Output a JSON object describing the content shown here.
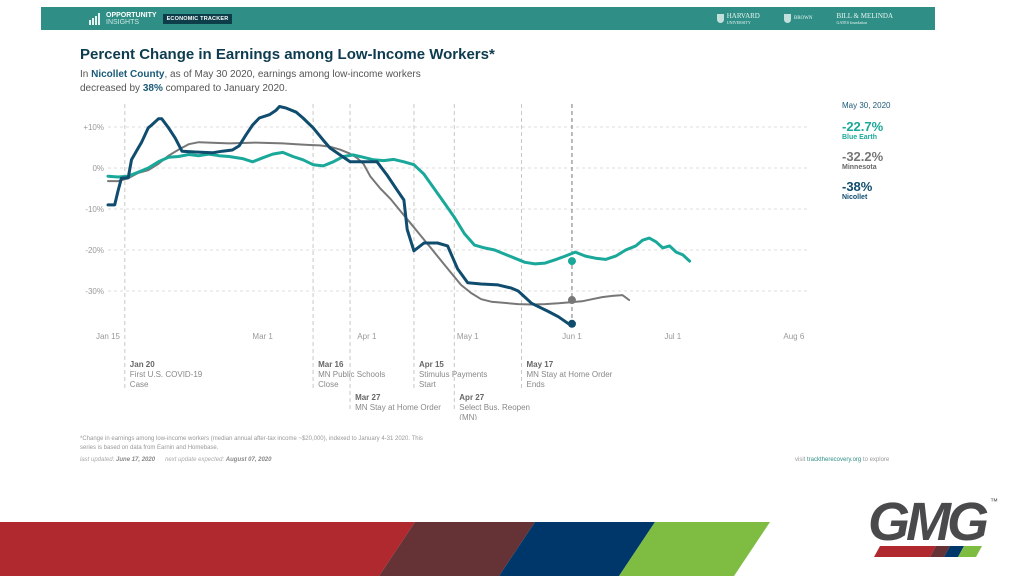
{
  "header": {
    "brand_line1": "OPPORTUNITY",
    "brand_line2": "INSIGHTS",
    "badge": "ECONOMIC TRACKER",
    "partners": [
      {
        "name": "HARVARD",
        "sub": "UNIVERSITY"
      },
      {
        "name": "BROWN",
        "sub": ""
      },
      {
        "name": "BILL & MELINDA",
        "sub": "GATES foundation"
      }
    ],
    "bar_color": "#2f8f86"
  },
  "title": "Percent Change in Earnings among Low-Income Workers*",
  "subtitle": {
    "pre": "In ",
    "county": "Nicollet County",
    "mid": ", as of May 30 2020, earnings among low-income workers decreased by ",
    "pct": "38%",
    "post": " compared to January 2020."
  },
  "sidebar": {
    "date": "May 30, 2020",
    "entries": [
      {
        "value": "-22.7%",
        "label": "Blue Earth",
        "color": "#1aa89a"
      },
      {
        "value": "-32.2%",
        "label": "Minnesota",
        "color": "#777777"
      },
      {
        "value": "-38%",
        "label": "Nicollet",
        "color": "#0f4c6e"
      }
    ]
  },
  "chart_data": {
    "type": "line",
    "title": "Percent Change in Earnings among Low-Income Workers*",
    "xlabel": "",
    "ylabel": "",
    "x_unit": "days since Jan 15, 2020",
    "xlim": [
      0,
      204
    ],
    "ylim": [
      -38,
      15
    ],
    "grid": true,
    "x_ticks": [
      {
        "day": 0,
        "label": "Jan 15"
      },
      {
        "day": 46,
        "label": "Mar 1"
      },
      {
        "day": 77,
        "label": "Apr 1"
      },
      {
        "day": 107,
        "label": "May 1"
      },
      {
        "day": 138,
        "label": "Jun 1"
      },
      {
        "day": 168,
        "label": "Jul 1"
      },
      {
        "day": 204,
        "label": "Aug 6"
      }
    ],
    "y_ticks": [
      {
        "value": 10,
        "label": "+10%"
      },
      {
        "value": 0,
        "label": "0%"
      },
      {
        "value": -10,
        "label": "-10%"
      },
      {
        "value": -20,
        "label": "-20%"
      },
      {
        "value": -30,
        "label": "-30%"
      }
    ],
    "series": [
      {
        "name": "Minnesota",
        "color": "#777777",
        "end_value": -32.2,
        "points": [
          [
            0,
            -3.2
          ],
          [
            3,
            -3.2
          ],
          [
            6,
            -2.5
          ],
          [
            9,
            -1.2
          ],
          [
            12,
            -0.5
          ],
          [
            15,
            1
          ],
          [
            18,
            3
          ],
          [
            21,
            4.5
          ],
          [
            24,
            5.8
          ],
          [
            27,
            6.3
          ],
          [
            30,
            6.2
          ],
          [
            33,
            6.1
          ],
          [
            36,
            6
          ],
          [
            40,
            6.1
          ],
          [
            44,
            6.2
          ],
          [
            48,
            6.1
          ],
          [
            52,
            6
          ],
          [
            56,
            5.8
          ],
          [
            60,
            5.6
          ],
          [
            63,
            5.5
          ],
          [
            66,
            5.2
          ],
          [
            69,
            4.5
          ],
          [
            72,
            3.5
          ],
          [
            74,
            2.5
          ],
          [
            76,
            1
          ],
          [
            78,
            -2
          ],
          [
            81,
            -5
          ],
          [
            84,
            -7.5
          ],
          [
            87,
            -10.5
          ],
          [
            90,
            -13.5
          ],
          [
            93,
            -16.5
          ],
          [
            96,
            -19.5
          ],
          [
            99,
            -22.5
          ],
          [
            102,
            -25.5
          ],
          [
            105,
            -28.5
          ],
          [
            108,
            -30.5
          ],
          [
            111,
            -32
          ],
          [
            114,
            -32.6
          ],
          [
            118,
            -32.9
          ],
          [
            122,
            -33.2
          ],
          [
            126,
            -33.3
          ],
          [
            130,
            -33.2
          ],
          [
            134,
            -33
          ],
          [
            138,
            -32.7
          ],
          [
            141,
            -32.5
          ],
          [
            144,
            -32
          ],
          [
            147,
            -31.5
          ],
          [
            150,
            -31.2
          ],
          [
            153,
            -31
          ],
          [
            155,
            -32.2
          ]
        ]
      },
      {
        "name": "Blue Earth",
        "color": "#1aa89a",
        "end_value": -22.7,
        "points": [
          [
            0,
            -2
          ],
          [
            3,
            -2.2
          ],
          [
            6,
            -2
          ],
          [
            9,
            -1
          ],
          [
            12,
            0
          ],
          [
            15,
            1.5
          ],
          [
            18,
            2.6
          ],
          [
            21,
            2.8
          ],
          [
            24,
            3.3
          ],
          [
            27,
            3
          ],
          [
            30,
            3.4
          ],
          [
            33,
            3
          ],
          [
            36,
            2.8
          ],
          [
            40,
            2.3
          ],
          [
            43,
            1.5
          ],
          [
            46,
            2.5
          ],
          [
            49,
            3.4
          ],
          [
            52,
            3.8
          ],
          [
            55,
            2.8
          ],
          [
            58,
            2
          ],
          [
            61,
            0.8
          ],
          [
            64,
            0.5
          ],
          [
            67,
            1.5
          ],
          [
            70,
            2.8
          ],
          [
            73,
            3.2
          ],
          [
            76,
            2.6
          ],
          [
            79,
            2
          ],
          [
            82,
            1.8
          ],
          [
            85,
            2.1
          ],
          [
            88,
            1.5
          ],
          [
            91,
            0.8
          ],
          [
            94,
            -1.5
          ],
          [
            97,
            -5
          ],
          [
            100,
            -8.5
          ],
          [
            103,
            -12
          ],
          [
            106,
            -16
          ],
          [
            109,
            -18.8
          ],
          [
            112,
            -19.5
          ],
          [
            115,
            -20
          ],
          [
            118,
            -21
          ],
          [
            121,
            -22
          ],
          [
            124,
            -23
          ],
          [
            127,
            -23.4
          ],
          [
            130,
            -23.2
          ],
          [
            133,
            -22.4
          ],
          [
            136,
            -21.5
          ],
          [
            139,
            -20.5
          ],
          [
            142,
            -21.5
          ],
          [
            145,
            -22
          ],
          [
            148,
            -22.3
          ],
          [
            151,
            -21.5
          ],
          [
            154,
            -20
          ],
          [
            157,
            -19
          ],
          [
            159,
            -17.6
          ],
          [
            161,
            -17.1
          ],
          [
            163,
            -18
          ],
          [
            165,
            -19.5
          ],
          [
            167,
            -19
          ],
          [
            169,
            -20.5
          ],
          [
            171,
            -21.2
          ],
          [
            173,
            -22.7
          ]
        ]
      },
      {
        "name": "Nicollet",
        "color": "#0f4c6e",
        "end_value": -38,
        "points": [
          [
            0,
            -9
          ],
          [
            2,
            -9
          ],
          [
            3,
            -5.5
          ],
          [
            4,
            -2.5
          ],
          [
            6,
            -2.4
          ],
          [
            7,
            2
          ],
          [
            9,
            4.9
          ],
          [
            10,
            6.3
          ],
          [
            12,
            9.8
          ],
          [
            13,
            10.5
          ],
          [
            15,
            12
          ],
          [
            16,
            12
          ],
          [
            18,
            9.8
          ],
          [
            20,
            7.3
          ],
          [
            22,
            4.1
          ],
          [
            26,
            3.9
          ],
          [
            31,
            3.7
          ],
          [
            34,
            4.1
          ],
          [
            37,
            4.4
          ],
          [
            39,
            5.4
          ],
          [
            41,
            8
          ],
          [
            43,
            10.5
          ],
          [
            45,
            12.2
          ],
          [
            48,
            13
          ],
          [
            50,
            14.1
          ],
          [
            51,
            15
          ],
          [
            53,
            14.6
          ],
          [
            56,
            13.6
          ],
          [
            58,
            12.2
          ],
          [
            61,
            9.8
          ],
          [
            64,
            6.8
          ],
          [
            66,
            4.9
          ],
          [
            69,
            3.2
          ],
          [
            72,
            1.5
          ],
          [
            76,
            1.5
          ],
          [
            80,
            1.5
          ],
          [
            83,
            -1.7
          ],
          [
            86,
            -5.4
          ],
          [
            88,
            -7.8
          ],
          [
            89,
            -15
          ],
          [
            91,
            -20.2
          ],
          [
            94,
            -18.3
          ],
          [
            98,
            -18.3
          ],
          [
            101,
            -19
          ],
          [
            104,
            -24.6
          ],
          [
            107,
            -28
          ],
          [
            111,
            -28.3
          ],
          [
            116,
            -28.5
          ],
          [
            120,
            -29.3
          ],
          [
            122,
            -30
          ],
          [
            126,
            -33
          ],
          [
            131,
            -35
          ],
          [
            134,
            -36.3
          ],
          [
            137,
            -38
          ]
        ]
      }
    ],
    "events": [
      {
        "day": 5,
        "date": "Jan 20",
        "text": "First U.S. COVID-19 Case",
        "row": 1
      },
      {
        "day": 61,
        "date": "Mar 16",
        "text": "MN Public Schools Close",
        "row": 1
      },
      {
        "day": 72,
        "date": "Mar 27",
        "text": "MN Stay at Home Order",
        "row": 2
      },
      {
        "day": 91,
        "date": "Apr 15",
        "text": "Stimulus Payments Start",
        "row": 1
      },
      {
        "day": 103,
        "date": "Apr 27",
        "text": "Select Bus. Reopen (MN)",
        "row": 2
      },
      {
        "day": 123,
        "date": "May 17",
        "text": "MN Stay at Home Order Ends",
        "row": 1
      }
    ],
    "current_marker_day": 138
  },
  "footnote": "*Change in earnings among low-income workers (median annual after-tax income ~$20,000), indexed to January 4-31 2020. This series is based on data from Earnin and Homebase.",
  "updated": {
    "last_label": "last updated: ",
    "last_value": "June 17, 2020",
    "next_label": "next update expected: ",
    "next_value": "August 07, 2020"
  },
  "visit": {
    "pre": "visit ",
    "link": "tracktherecovery.org",
    "post": " to explore"
  },
  "slide": {
    "logo_text": "GMG",
    "tm": "™",
    "stripe_colors": [
      "#b0292f",
      "#653236",
      "#00376b",
      "#7fbd42"
    ]
  }
}
